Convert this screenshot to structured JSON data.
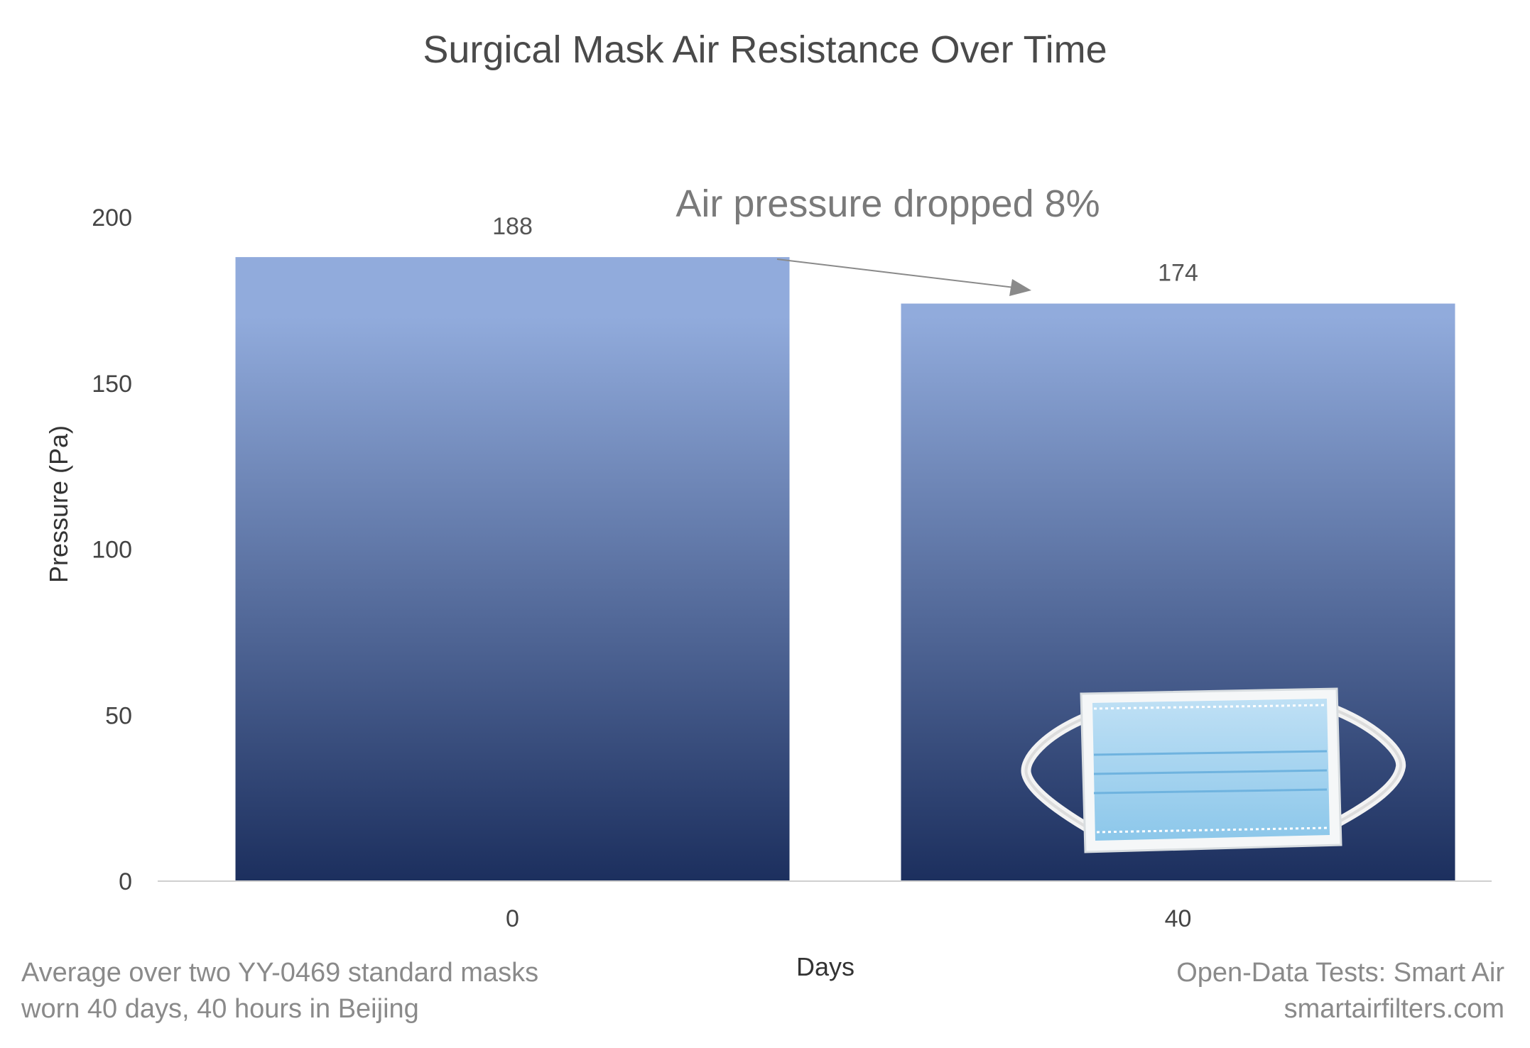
{
  "chart_data": {
    "type": "bar",
    "title": "Surgical Mask Air Resistance Over Time",
    "xlabel": "Days",
    "ylabel": "Pressure (Pa)",
    "categories": [
      "0",
      "40"
    ],
    "values": [
      188,
      174
    ],
    "data_labels": [
      "188",
      "174"
    ],
    "ylim": [
      0,
      200
    ],
    "yticks": [
      0,
      50,
      100,
      150,
      200
    ],
    "grid": false,
    "legend": "none",
    "bar_gradient": {
      "top": "#91abdc",
      "bottom": "#1c2f5e"
    },
    "annotation": "Air pressure dropped 8%",
    "footnote_left": [
      "Average over two YY-0469 standard masks",
      "worn 40 days, 40 hours in Beijing"
    ],
    "footnote_right": [
      "Open-Data Tests: Smart Air",
      "smartairfilters.com"
    ]
  }
}
